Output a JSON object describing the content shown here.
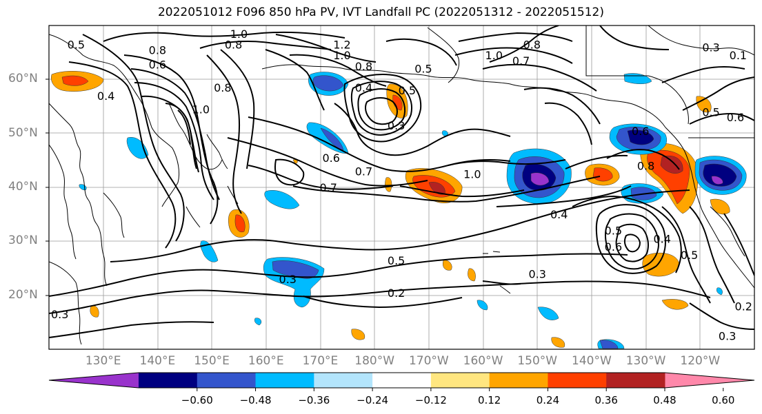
{
  "title": "2022051012 F096 850 hPa PV, IVT Landfall PC (2022051312 - 2022051512)",
  "lat_labels": [
    {
      "text": "60°N",
      "lat": 60
    },
    {
      "text": "50°N",
      "lat": 50
    },
    {
      "text": "40°N",
      "lat": 40
    },
    {
      "text": "30°N",
      "lat": 30
    },
    {
      "text": "20°N",
      "lat": 20
    }
  ],
  "lon_labels": [
    {
      "text": "130°E",
      "lon": 130
    },
    {
      "text": "140°E",
      "lon": 140
    },
    {
      "text": "150°E",
      "lon": 150
    },
    {
      "text": "160°E",
      "lon": 160
    },
    {
      "text": "170°E",
      "lon": 170
    },
    {
      "text": "180°W",
      "lon": 180
    },
    {
      "text": "170°W",
      "lon": 190
    },
    {
      "text": "160°W",
      "lon": 200
    },
    {
      "text": "150°W",
      "lon": 210
    },
    {
      "text": "140°W",
      "lon": 220
    },
    {
      "text": "130°W",
      "lon": 230
    },
    {
      "text": "120°W",
      "lon": 240
    }
  ],
  "map_extent": {
    "lon_min": 120,
    "lon_max": 250,
    "lat_min": 10,
    "lat_max": 70
  },
  "colorbar": {
    "colors": [
      "#9933cc",
      "#000080",
      "#3355cc",
      "#00bbff",
      "#b3e5fc",
      "#ffffff",
      "#ffe680",
      "#ffa500",
      "#ff4000",
      "#b22222",
      "#ff88aa"
    ],
    "ticks": [
      "−0.60",
      "−0.48",
      "−0.36",
      "−0.24",
      "−0.12",
      "0.12",
      "0.24",
      "0.36",
      "0.48",
      "0.60"
    ]
  },
  "contour_labels": [
    {
      "text": "0.5",
      "lon": 125,
      "lat": 66.5
    },
    {
      "text": "1.0",
      "lon": 155,
      "lat": 68.5
    },
    {
      "text": "0.8",
      "lon": 140,
      "lat": 65.5
    },
    {
      "text": "0.6",
      "lon": 140,
      "lat": 62.8
    },
    {
      "text": "0.8",
      "lon": 154,
      "lat": 66.5
    },
    {
      "text": "1.2",
      "lon": 174,
      "lat": 66.5
    },
    {
      "text": "1.0",
      "lon": 174,
      "lat": 64.5
    },
    {
      "text": "0.8",
      "lon": 178,
      "lat": 62.5
    },
    {
      "text": "0.5",
      "lon": 189,
      "lat": 62.0
    },
    {
      "text": "1.0",
      "lon": 202,
      "lat": 64.5
    },
    {
      "text": "0.7",
      "lon": 207,
      "lat": 63.5
    },
    {
      "text": "0.8",
      "lon": 209,
      "lat": 66.5
    },
    {
      "text": "0.4",
      "lon": 130.5,
      "lat": 57.0
    },
    {
      "text": "1.0",
      "lon": 148,
      "lat": 54.5
    },
    {
      "text": "0.8",
      "lon": 152,
      "lat": 58.5
    },
    {
      "text": "0.4",
      "lon": 178,
      "lat": 58.5
    },
    {
      "text": "0.5",
      "lon": 186,
      "lat": 58.0
    },
    {
      "text": "0.3",
      "lon": 184,
      "lat": 51.5
    },
    {
      "text": "0.6",
      "lon": 172,
      "lat": 45.5
    },
    {
      "text": "0.7",
      "lon": 178,
      "lat": 43.0
    },
    {
      "text": "1.0",
      "lon": 198,
      "lat": 42.5
    },
    {
      "text": "0.7",
      "lon": 171.5,
      "lat": 40.0
    },
    {
      "text": "0.4",
      "lon": 214,
      "lat": 35.0
    },
    {
      "text": "0.5",
      "lon": 184,
      "lat": 26.5
    },
    {
      "text": "0.3",
      "lon": 164,
      "lat": 23.0
    },
    {
      "text": "0.2",
      "lon": 184,
      "lat": 20.5
    },
    {
      "text": "0.3",
      "lon": 210,
      "lat": 24.0
    },
    {
      "text": "0.6",
      "lon": 229,
      "lat": 50.5
    },
    {
      "text": "0.8",
      "lon": 230,
      "lat": 44.0
    },
    {
      "text": "0.5",
      "lon": 242,
      "lat": 54.0
    },
    {
      "text": "0.6",
      "lon": 246.5,
      "lat": 53.0
    },
    {
      "text": "0.5",
      "lon": 224,
      "lat": 32.0
    },
    {
      "text": "0.6",
      "lon": 224,
      "lat": 29.0
    },
    {
      "text": "0.4",
      "lon": 233,
      "lat": 30.5
    },
    {
      "text": "0.5",
      "lon": 238,
      "lat": 27.5
    },
    {
      "text": "0.2",
      "lon": 248,
      "lat": 18.0
    },
    {
      "text": "0.3",
      "lon": 245,
      "lat": 12.5
    },
    {
      "text": "0.3",
      "lon": 242,
      "lat": 66.0
    },
    {
      "text": "0.1",
      "lon": 247,
      "lat": 64.5
    },
    {
      "text": "0.3",
      "lon": 122,
      "lat": 16.5
    }
  ]
}
